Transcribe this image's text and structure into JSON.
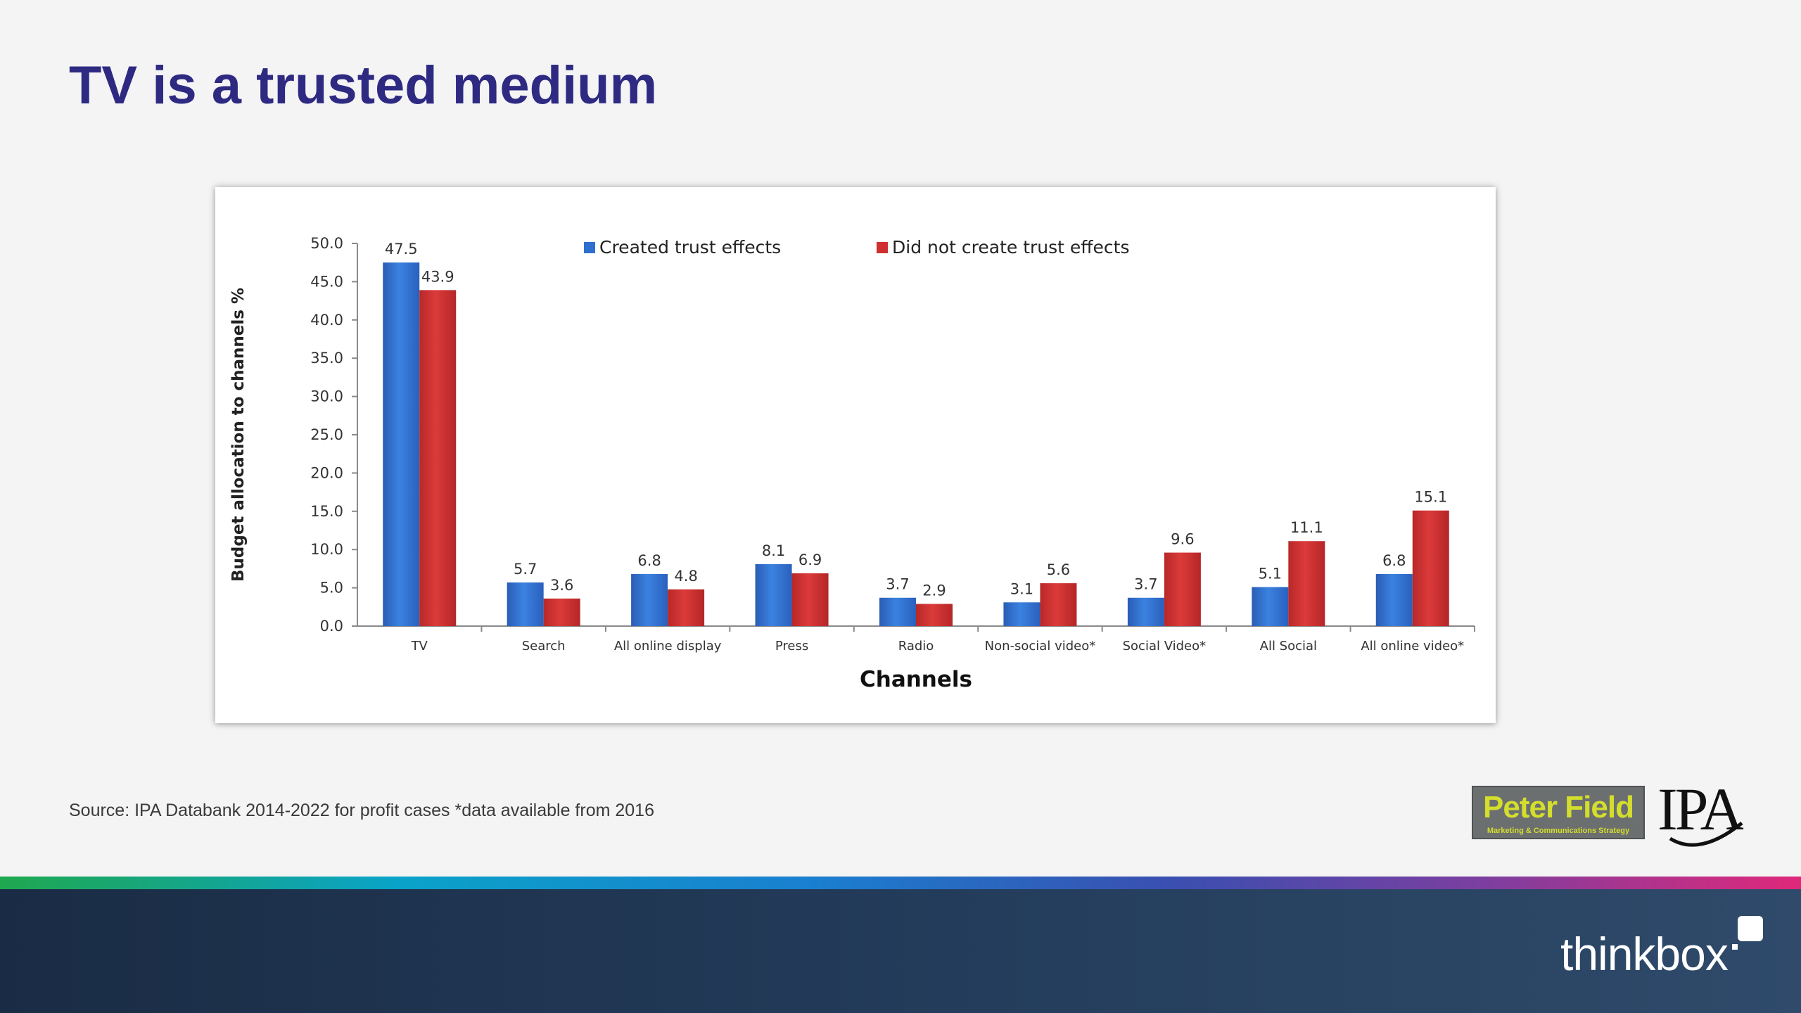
{
  "slide": {
    "title": "TV is a trusted medium",
    "source": "Source: IPA Databank 2014-2022 for profit cases *data available from 2016"
  },
  "logos": {
    "peter_field_name": "Peter Field",
    "peter_field_tagline": "Marketing & Communications Strategy",
    "ipa": "IPA",
    "thinkbox": "thinkbox"
  },
  "colors": {
    "title": "#2e2a82",
    "series_created": "#2f6fd0",
    "series_not_created": "#cf2f2f"
  },
  "chart_data": {
    "type": "bar",
    "title": "",
    "xlabel": "Channels",
    "ylabel": "Budget allocation to channels %",
    "ylim": [
      0,
      50
    ],
    "yticks": [
      "0.0",
      "5.0",
      "10.0",
      "15.0",
      "20.0",
      "25.0",
      "30.0",
      "35.0",
      "40.0",
      "45.0",
      "50.0"
    ],
    "legend_position": "top",
    "grid": false,
    "categories": [
      "TV",
      "Search",
      "All online display",
      "Press",
      "Radio",
      "Non-social video*",
      "Social Video*",
      "All Social",
      "All online video*"
    ],
    "series": [
      {
        "name": "Created trust effects",
        "color": "#2f6fd0",
        "values": [
          47.5,
          5.7,
          6.8,
          8.1,
          3.7,
          3.1,
          3.7,
          5.1,
          6.8
        ],
        "labels": [
          "47.5",
          "5.7",
          "6.8",
          "8.1",
          "3.7",
          "3.1",
          "3.7",
          "5.1",
          "6.8"
        ]
      },
      {
        "name": "Did not create trust effects",
        "color": "#cf2f2f",
        "values": [
          43.9,
          3.6,
          4.8,
          6.9,
          2.9,
          5.6,
          9.6,
          11.1,
          15.1
        ],
        "labels": [
          "43.9",
          "3.6",
          "4.8",
          "6.9",
          "2.9",
          "5.6",
          "9.6",
          "11.1",
          "15.1"
        ]
      }
    ]
  }
}
